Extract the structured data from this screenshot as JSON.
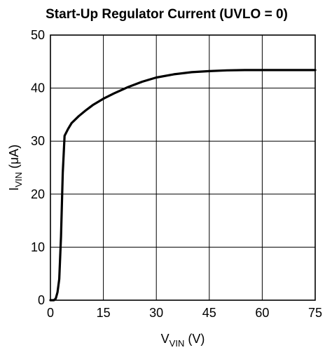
{
  "chart_data": {
    "type": "line",
    "title": "Start-Up Regulator Current (UVLO = 0)",
    "xlabel": {
      "main": "V",
      "sub": "VIN",
      "unit": " (V)"
    },
    "ylabel": {
      "main": "I",
      "sub": "VIN",
      "unit": " (μA)"
    },
    "xlim": [
      0,
      75
    ],
    "ylim": [
      0,
      50
    ],
    "xticks": [
      0,
      15,
      30,
      45,
      60,
      75
    ],
    "yticks": [
      0,
      10,
      20,
      30,
      40,
      50
    ],
    "grid": true,
    "series": [
      {
        "x": [
          0,
          1,
          1.5,
          2,
          2.5,
          3,
          3.5,
          4,
          5,
          6,
          8,
          10,
          12,
          15,
          18,
          22,
          26,
          30,
          35,
          40,
          45,
          50,
          55,
          60,
          65,
          70,
          75
        ],
        "y": [
          0,
          0,
          0.3,
          1.5,
          4,
          12,
          24,
          31,
          32.3,
          33.4,
          34.7,
          35.8,
          36.8,
          38,
          39,
          40.2,
          41.2,
          42,
          42.6,
          43.0,
          43.2,
          43.35,
          43.4,
          43.4,
          43.4,
          43.4,
          43.4
        ]
      }
    ]
  }
}
